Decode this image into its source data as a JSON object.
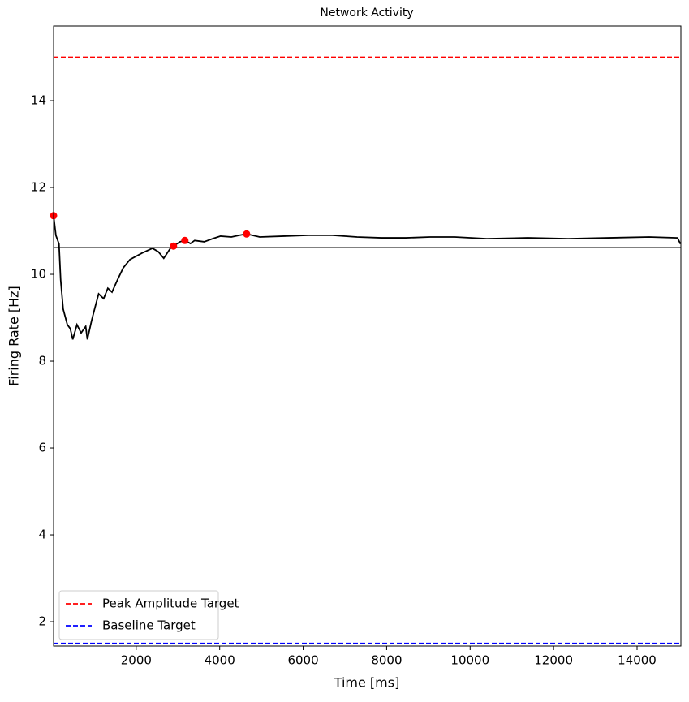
{
  "chart_data": {
    "type": "line",
    "title": "Network Activity",
    "xlabel": "Time [ms]",
    "ylabel": "Firing Rate [Hz]",
    "xlim": [
      20,
      15050
    ],
    "ylim": [
      1.44,
      15.72
    ],
    "xticks": [
      2000,
      4000,
      6000,
      8000,
      10000,
      12000,
      14000
    ],
    "yticks": [
      2,
      4,
      6,
      8,
      10,
      12,
      14
    ],
    "legend": "lower left",
    "series": [
      {
        "color": "#000000",
        "mode": "line",
        "x": [
          20,
          75,
          150,
          190,
          250,
          350,
          420,
          480,
          580,
          680,
          790,
          830,
          930,
          1030,
          1100,
          1220,
          1320,
          1420,
          1550,
          1690,
          1850,
          2140,
          2390,
          2530,
          2660,
          2820,
          2894,
          3050,
          3166,
          3300,
          3400,
          3630,
          3830,
          4020,
          4280,
          4470,
          4645,
          4960,
          5540,
          6120,
          6700,
          7290,
          7870,
          8460,
          9040,
          9630,
          10400,
          11380,
          12350,
          13320,
          14290,
          14970,
          15040
        ],
        "values": [
          11.35,
          10.9,
          10.7,
          9.87,
          9.2,
          8.84,
          8.75,
          8.5,
          8.84,
          8.65,
          8.8,
          8.5,
          8.93,
          9.3,
          9.55,
          9.44,
          9.68,
          9.59,
          9.87,
          10.15,
          10.34,
          10.49,
          10.6,
          10.52,
          10.37,
          10.6,
          10.65,
          10.75,
          10.78,
          10.71,
          10.78,
          10.75,
          10.82,
          10.88,
          10.86,
          10.9,
          10.93,
          10.86,
          10.88,
          10.9,
          10.9,
          10.86,
          10.84,
          10.84,
          10.86,
          10.86,
          10.82,
          10.84,
          10.82,
          10.84,
          10.86,
          10.84,
          10.7
        ]
      },
      {
        "color": "#ff0000",
        "mode": "markers",
        "x": [
          20,
          2894,
          3166,
          4645
        ],
        "values": [
          11.35,
          10.65,
          10.78,
          10.93
        ]
      }
    ],
    "reference_lines": [
      {
        "name": "Peak Amplitude Target",
        "value": 15,
        "color": "#ff0000",
        "dashed": true
      },
      {
        "name": "Baseline Target",
        "value": 1.5,
        "color": "#0000ff",
        "dashed": true
      },
      {
        "value": 10.62,
        "color": "#808080",
        "dashed": false
      }
    ]
  }
}
